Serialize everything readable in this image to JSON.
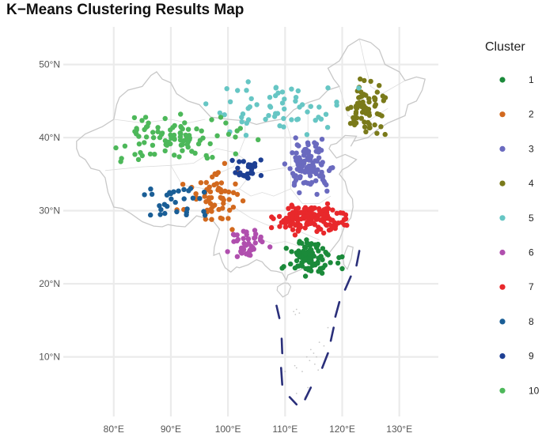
{
  "title": "K−Means Clustering Results Map",
  "chart_data": {
    "type": "scatter",
    "title": "K−Means Clustering Results Map",
    "xlabel": "",
    "ylabel": "",
    "xlim": [
      72,
      136
    ],
    "ylim": [
      2.5,
      54.5
    ],
    "x_ticks": [
      80,
      90,
      100,
      110,
      120,
      130
    ],
    "y_ticks": [
      10,
      20,
      30,
      40,
      50
    ],
    "x_tick_labels": [
      "80°E",
      "90°E",
      "100°E",
      "110°E",
      "120°E",
      "130°E"
    ],
    "y_tick_labels": [
      "10°N",
      "20°N",
      "30°N",
      "40°N",
      "50°N"
    ],
    "grid": true,
    "legend_position": "right",
    "legend_title": "Cluster",
    "series": [
      {
        "name": "1",
        "color": "#1b8a3a",
        "centroid": [
          114.5,
          23.5
        ],
        "spread": [
          3.8,
          2.0
        ],
        "count": 95
      },
      {
        "name": "2",
        "color": "#d2691e",
        "centroid": [
          97.5,
          32.0
        ],
        "spread": [
          4.5,
          3.3
        ],
        "count": 60
      },
      {
        "name": "3",
        "color": "#6a6abf",
        "centroid": [
          114.5,
          36.0
        ],
        "spread": [
          3.3,
          2.8
        ],
        "count": 100
      },
      {
        "name": "4",
        "color": "#7a7a1a",
        "centroid": [
          124.0,
          44.0
        ],
        "spread": [
          3.0,
          3.2
        ],
        "count": 70
      },
      {
        "name": "5",
        "color": "#66c6c4",
        "centroid": [
          108.0,
          43.5
        ],
        "spread": [
          11.0,
          3.8
        ],
        "count": 60
      },
      {
        "name": "6",
        "color": "#b04fae",
        "centroid": [
          103.5,
          25.5
        ],
        "spread": [
          2.8,
          1.7
        ],
        "count": 45
      },
      {
        "name": "7",
        "color": "#e8282b",
        "centroid": [
          114.5,
          29.0
        ],
        "spread": [
          5.0,
          1.8
        ],
        "count": 150
      },
      {
        "name": "8",
        "color": "#1a5e96",
        "centroid": [
          91.0,
          31.0
        ],
        "spread": [
          6.0,
          2.5
        ],
        "count": 30
      },
      {
        "name": "9",
        "color": "#1d3f93",
        "centroid": [
          103.5,
          35.5
        ],
        "spread": [
          2.5,
          1.6
        ],
        "count": 25
      },
      {
        "name": "10",
        "color": "#4db85a",
        "centroid": [
          91.0,
          40.0
        ],
        "spread": [
          10.0,
          3.0
        ],
        "count": 95
      }
    ],
    "panel_background": "#ffffff",
    "gridline_color": "#ebebeb",
    "boundary_color": "#c8c8c8",
    "dashed_line_color": "#2a2f7a"
  }
}
